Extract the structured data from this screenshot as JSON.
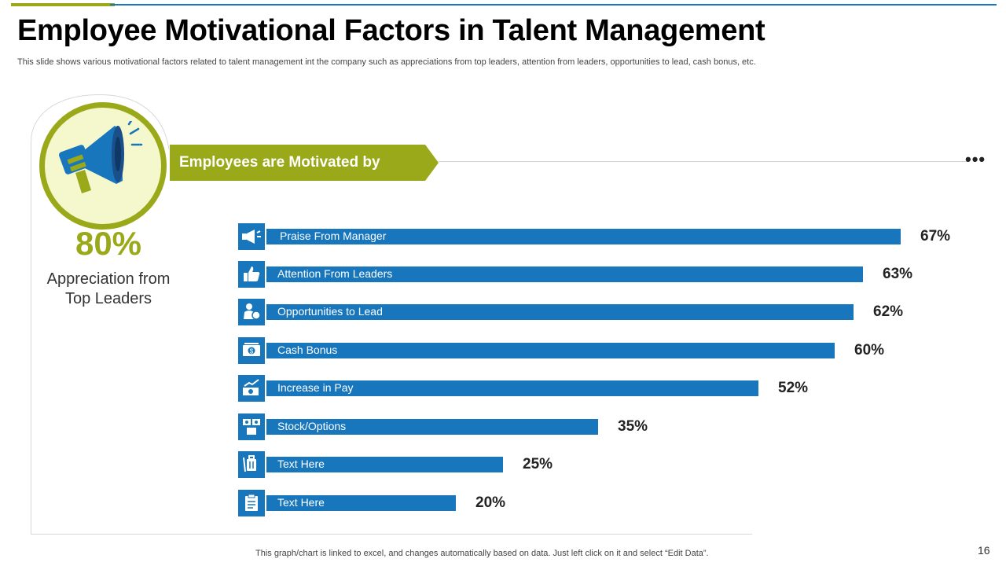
{
  "slide": {
    "title": "Employee Motivational Factors in Talent Management",
    "subtitle": "This slide shows various motivational factors related to talent management int the company such as appreciations from top leaders, attention from leaders, opportunities to lead, cash bonus, etc.",
    "footer_note": "This graph/chart is linked to excel,  and changes automatically based on data. Just left click on it and select “Edit Data”.",
    "page_number": "16"
  },
  "highlight": {
    "percent": "80%",
    "label_line1": "Appreciation from",
    "label_line2": "Top Leaders",
    "icon": "megaphone-icon"
  },
  "banner": {
    "text": "Employees are Motivated by",
    "more_icon": "•••"
  },
  "colors": {
    "accent_green": "#9aa919",
    "bar_blue": "#1776bc",
    "circle_fill": "#f4f8cc"
  },
  "chart_data": {
    "type": "bar",
    "orientation": "horizontal",
    "categories": [
      "Praise From Manager",
      "Attention From Leaders",
      "Opportunities to Lead",
      "Cash Bonus",
      "Increase in Pay",
      "Stock/Options",
      "Text Here",
      "Text Here"
    ],
    "values": [
      67,
      63,
      62,
      60,
      52,
      35,
      25,
      20
    ],
    "value_labels": [
      "67%",
      "63%",
      "62%",
      "60%",
      "52%",
      "35%",
      "25%",
      "20%"
    ],
    "icons": [
      "megaphone-icon",
      "thumbs-up-icon",
      "leader-icon",
      "cash-icon",
      "pay-increase-icon",
      "stock-icon",
      "luggage-icon",
      "clipboard-icon"
    ],
    "xlim": [
      0,
      67
    ],
    "grid": false,
    "unit": "%"
  }
}
